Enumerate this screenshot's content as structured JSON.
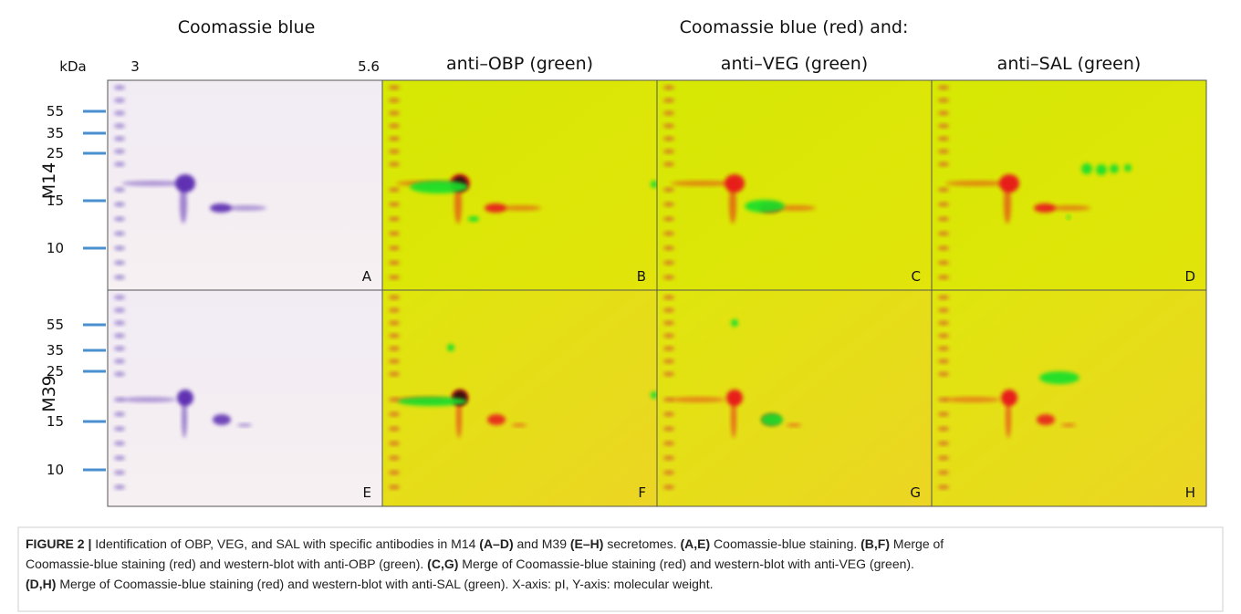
{
  "header": {
    "left_title": "Coomassie blue",
    "right_title": "Coomassie blue (red) and:",
    "column_titles": [
      "anti–OBP (green)",
      "anti–VEG (green)",
      "anti–SAL (green)"
    ],
    "axis_unit": "kDa",
    "x_start": "3",
    "x_end": "5.6"
  },
  "rows": [
    {
      "label": "M14",
      "markers": [
        "55",
        "35",
        "25",
        "15",
        "10"
      ],
      "panels": [
        "A",
        "B",
        "C",
        "D"
      ]
    },
    {
      "label": "M39",
      "markers": [
        "55",
        "35",
        "25",
        "15",
        "10"
      ],
      "panels": [
        "E",
        "F",
        "G",
        "H"
      ]
    }
  ],
  "caption": {
    "lines": [
      [
        {
          "text": "FIGURE 2 |",
          "bold": true
        },
        {
          "text": " Identification of OBP, VEG, and SAL with specific antibodies in M14 ",
          "bold": false
        },
        {
          "text": "(A–D)",
          "bold": true
        },
        {
          "text": " and M39 ",
          "bold": false
        },
        {
          "text": "(E–H)",
          "bold": true
        },
        {
          "text": " secretomes. ",
          "bold": false
        },
        {
          "text": "(A,E)",
          "bold": true
        },
        {
          "text": " Coomassie-blue staining. ",
          "bold": false
        },
        {
          "text": "(B,F)",
          "bold": true
        },
        {
          "text": " Merge of",
          "bold": false
        }
      ],
      [
        {
          "text": "Coomassie-blue staining (red) and western-blot with anti-OBP (green). ",
          "bold": false
        },
        {
          "text": "(C,G)",
          "bold": true
        },
        {
          "text": " Merge of Coomassie-blue staining (red) and western-blot with anti-VEG (green).",
          "bold": false
        }
      ],
      [
        {
          "text": "(D,H)",
          "bold": true
        },
        {
          "text": " Merge of Coomassie-blue staining (red) and western-blot with anti-SAL (green). X-axis: pI, Y-axis: molecular weight.",
          "bold": false
        }
      ]
    ]
  }
}
